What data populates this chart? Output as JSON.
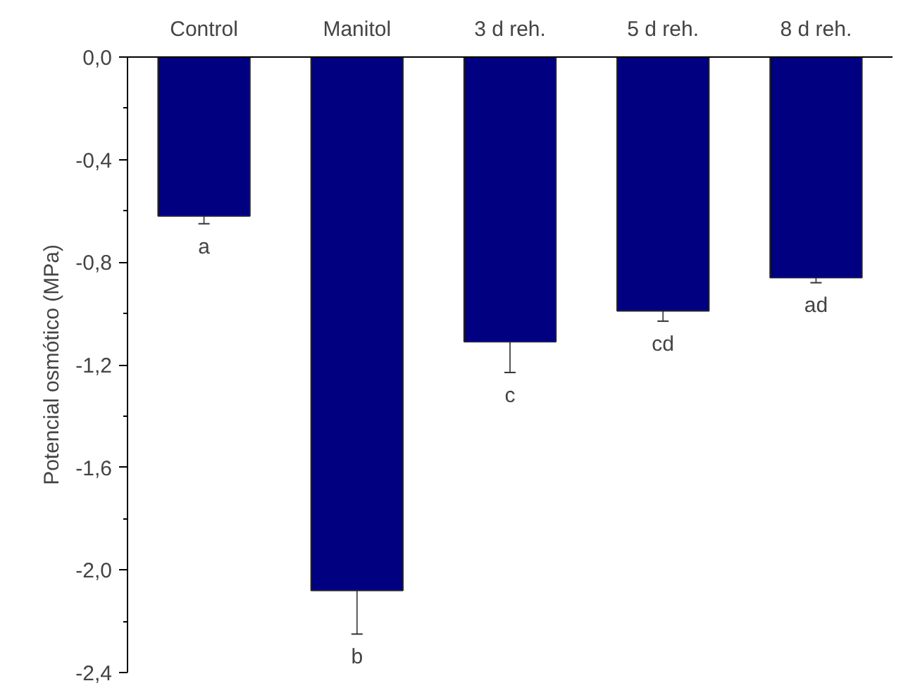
{
  "chart_data": {
    "type": "bar",
    "categories": [
      "Control",
      "Manitol",
      "3 d reh.",
      "5 d reh.",
      "8 d reh."
    ],
    "values": [
      -0.62,
      -2.08,
      -1.11,
      -0.99,
      -0.86
    ],
    "errors": [
      0.03,
      0.17,
      0.12,
      0.04,
      0.02
    ],
    "color": "#000080",
    "ylabel": "Potencial osmótico (MPa)",
    "ylim": [
      -2.4,
      0
    ],
    "yticks": [
      {
        "value": 0,
        "label": "0,0"
      },
      {
        "value": -0.4,
        "label": "-0,4"
      },
      {
        "value": -0.8,
        "label": "-0,8"
      },
      {
        "value": -1.2,
        "label": "-1,2"
      },
      {
        "value": -1.6,
        "label": "-1,6"
      },
      {
        "value": -2.0,
        "label": "-2,0"
      },
      {
        "value": -2.4,
        "label": "-2,4"
      }
    ],
    "annotations": [
      "a",
      "b",
      "c",
      "cd",
      "ad"
    ]
  }
}
